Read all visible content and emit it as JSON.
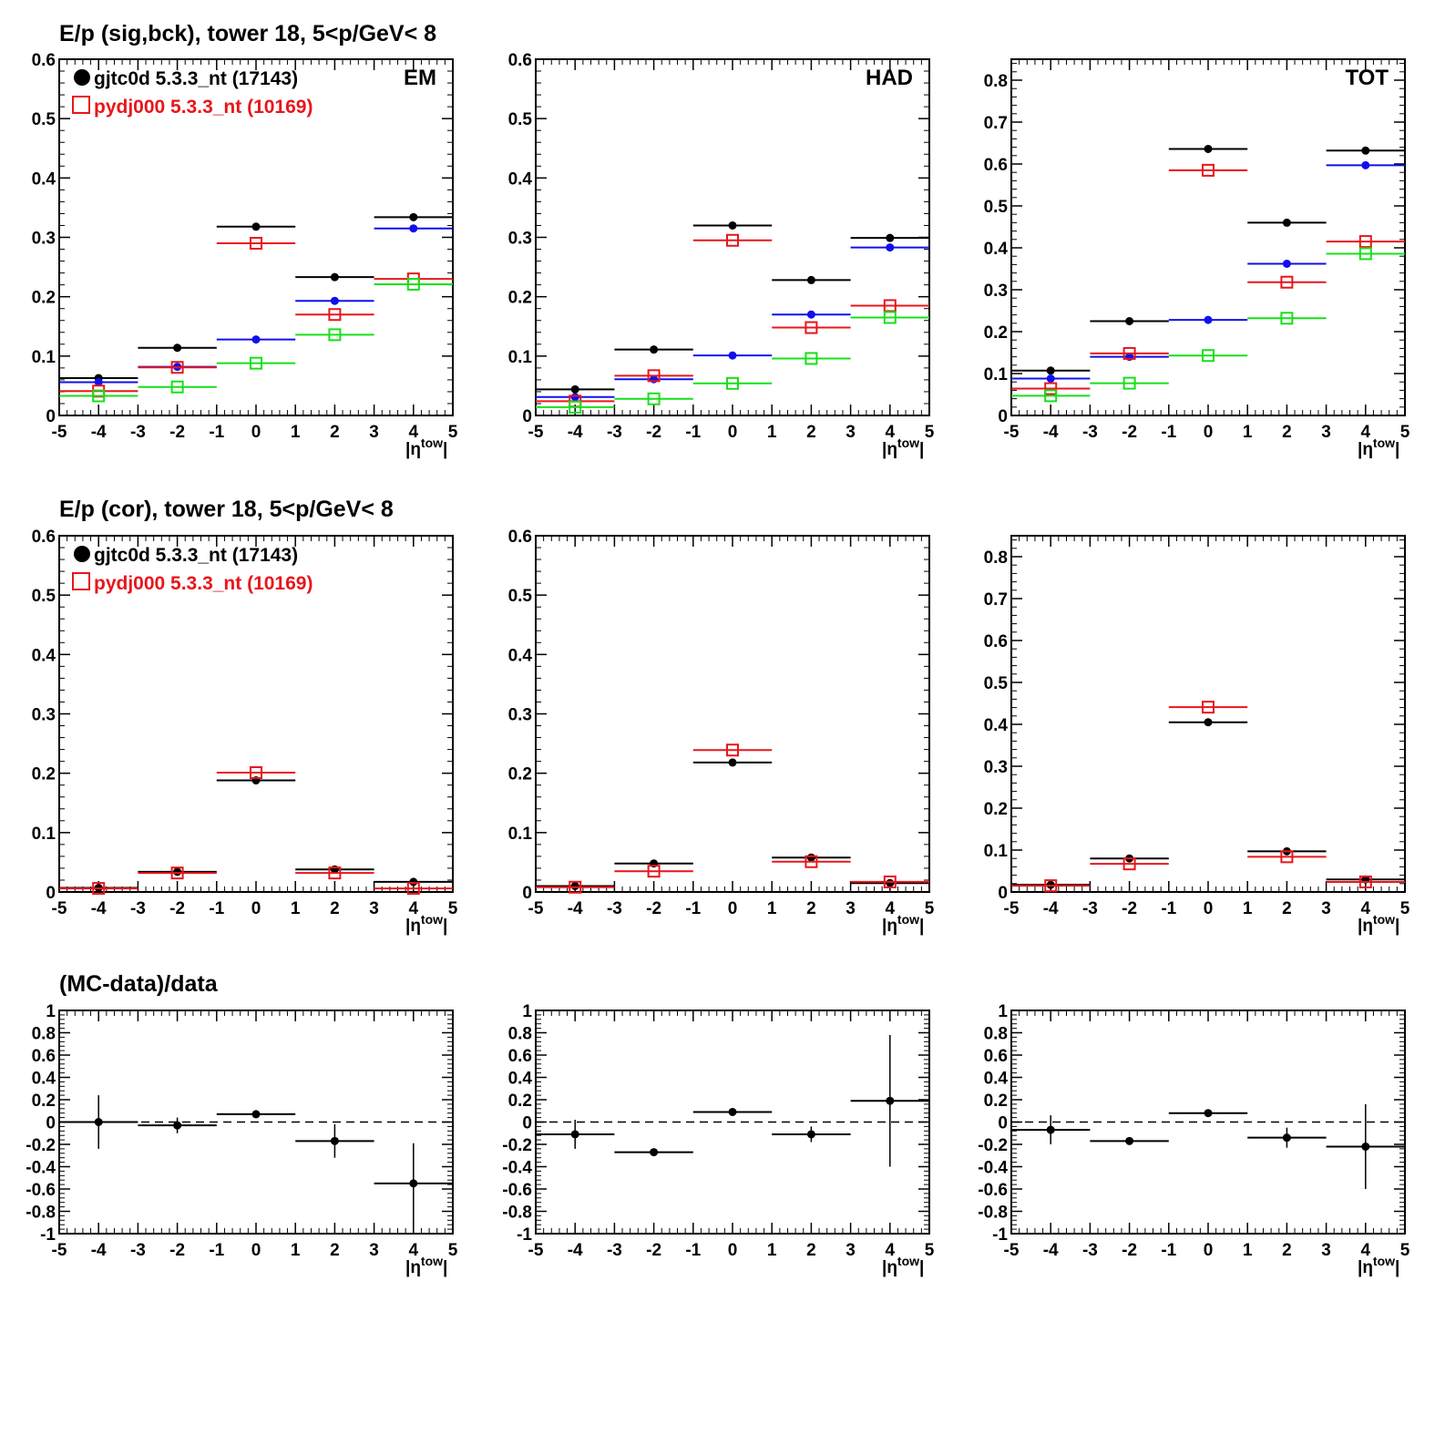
{
  "rows": [
    {
      "title": "E/p (sig,bck), tower 18,  5<p/GeV< 8"
    },
    {
      "title": "E/p (cor), tower 18,  5<p/GeV< 8"
    },
    {
      "title": "(MC-data)/data"
    }
  ],
  "legend": {
    "data_label": "gjtc0d 5.3.3_nt (17143)",
    "mc_label": "pydj000 5.3.3_nt (10169)",
    "placement": "top-left of first two left panels"
  },
  "xlabel": "|η^tow|",
  "colors": {
    "data": "#000000",
    "mc": "#e8161b",
    "data_bck": "#1010ee",
    "mc_bck": "#17e01a"
  },
  "chart_data": [
    {
      "type": "scatter",
      "row": 0,
      "col": 0,
      "corner_label": "EM",
      "xlabel": "|η^tow|",
      "xlim": [
        -5,
        5
      ],
      "ylim": [
        0,
        0.6
      ],
      "x": [
        -4,
        -2,
        0,
        2,
        4
      ],
      "xerr": 1,
      "series": [
        {
          "name": "gjtc0d 5.3.3_nt (17143)",
          "color": "black",
          "marker": "dot",
          "values": [
            0.063,
            0.114,
            0.318,
            0.233,
            0.334
          ]
        },
        {
          "color": "blue",
          "marker": "dot",
          "values": [
            0.056,
            0.082,
            0.128,
            0.193,
            0.315
          ]
        },
        {
          "name": "pydj000 5.3.3_nt (10169)",
          "color": "red",
          "marker": "open-square",
          "values": [
            0.041,
            0.081,
            0.29,
            0.17,
            0.23
          ]
        },
        {
          "color": "green",
          "marker": "open-square",
          "values": [
            0.033,
            0.048,
            0.088,
            0.136,
            0.221
          ]
        }
      ]
    },
    {
      "type": "scatter",
      "row": 0,
      "col": 1,
      "corner_label": "HAD",
      "xlabel": "|η^tow|",
      "xlim": [
        -5,
        5
      ],
      "ylim": [
        0,
        0.6
      ],
      "x": [
        -4,
        -2,
        0,
        2,
        4
      ],
      "xerr": 1,
      "series": [
        {
          "color": "black",
          "marker": "dot",
          "values": [
            0.044,
            0.111,
            0.32,
            0.228,
            0.299
          ]
        },
        {
          "color": "blue",
          "marker": "dot",
          "values": [
            0.031,
            0.061,
            0.101,
            0.17,
            0.283
          ]
        },
        {
          "color": "red",
          "marker": "open-square",
          "values": [
            0.024,
            0.067,
            0.295,
            0.148,
            0.185
          ]
        },
        {
          "color": "green",
          "marker": "open-square",
          "values": [
            0.014,
            0.028,
            0.054,
            0.096,
            0.165
          ]
        }
      ]
    },
    {
      "type": "scatter",
      "row": 0,
      "col": 2,
      "corner_label": "TOT",
      "xlabel": "|η^tow|",
      "xlim": [
        -5,
        5
      ],
      "ylim": [
        0,
        0.85
      ],
      "x": [
        -4,
        -2,
        0,
        2,
        4
      ],
      "xerr": 1,
      "series": [
        {
          "color": "black",
          "marker": "dot",
          "values": [
            0.107,
            0.225,
            0.636,
            0.46,
            0.632
          ]
        },
        {
          "color": "blue",
          "marker": "dot",
          "values": [
            0.088,
            0.14,
            0.228,
            0.362,
            0.597
          ]
        },
        {
          "color": "red",
          "marker": "open-square",
          "values": [
            0.064,
            0.148,
            0.585,
            0.318,
            0.415
          ]
        },
        {
          "color": "green",
          "marker": "open-square",
          "values": [
            0.047,
            0.077,
            0.143,
            0.232,
            0.386
          ]
        }
      ]
    },
    {
      "type": "scatter",
      "row": 1,
      "col": 0,
      "corner_label": "",
      "xlabel": "|η^tow|",
      "xlim": [
        -5,
        5
      ],
      "ylim": [
        0,
        0.6
      ],
      "x": [
        -4,
        -2,
        0,
        2,
        4
      ],
      "xerr": 1,
      "series": [
        {
          "name": "gjtc0d 5.3.3_nt (17143)",
          "color": "black",
          "marker": "dot",
          "values": [
            0.007,
            0.034,
            0.188,
            0.038,
            0.017
          ]
        },
        {
          "name": "pydj000 5.3.3_nt (10169)",
          "color": "red",
          "marker": "open-square",
          "values": [
            0.006,
            0.032,
            0.201,
            0.032,
            0.006
          ]
        }
      ]
    },
    {
      "type": "scatter",
      "row": 1,
      "col": 1,
      "corner_label": "",
      "xlabel": "|η^tow|",
      "xlim": [
        -5,
        5
      ],
      "ylim": [
        0,
        0.6
      ],
      "x": [
        -4,
        -2,
        0,
        2,
        4
      ],
      "xerr": 1,
      "series": [
        {
          "color": "black",
          "marker": "dot",
          "values": [
            0.01,
            0.048,
            0.218,
            0.058,
            0.015
          ]
        },
        {
          "color": "red",
          "marker": "open-square",
          "values": [
            0.008,
            0.035,
            0.239,
            0.051,
            0.017
          ]
        }
      ]
    },
    {
      "type": "scatter",
      "row": 1,
      "col": 2,
      "corner_label": "",
      "xlabel": "|η^tow|",
      "xlim": [
        -5,
        5
      ],
      "ylim": [
        0,
        0.85
      ],
      "x": [
        -4,
        -2,
        0,
        2,
        4
      ],
      "xerr": 1,
      "series": [
        {
          "color": "black",
          "marker": "dot",
          "values": [
            0.017,
            0.08,
            0.405,
            0.097,
            0.03
          ]
        },
        {
          "color": "red",
          "marker": "open-square",
          "values": [
            0.015,
            0.067,
            0.441,
            0.084,
            0.024
          ]
        }
      ]
    },
    {
      "type": "scatter",
      "row": 2,
      "col": 0,
      "corner_label": "",
      "xlabel": "|η^tow|",
      "xlim": [
        -5,
        5
      ],
      "ylim": [
        -1,
        1
      ],
      "reference_line": 0,
      "x": [
        -4,
        -2,
        0,
        2,
        4
      ],
      "xerr": 1,
      "series": [
        {
          "color": "black",
          "marker": "dot",
          "values": [
            0.0,
            -0.03,
            0.07,
            -0.17,
            -0.55
          ],
          "yerr": [
            0.24,
            0.07,
            0.02,
            0.15,
            0.36
          ]
        }
      ]
    },
    {
      "type": "scatter",
      "row": 2,
      "col": 1,
      "corner_label": "",
      "xlabel": "|η^tow|",
      "xlim": [
        -5,
        5
      ],
      "ylim": [
        -1,
        1
      ],
      "reference_line": 0,
      "x": [
        -4,
        -2,
        0,
        2,
        4
      ],
      "xerr": 1,
      "series": [
        {
          "color": "black",
          "marker": "dot",
          "values": [
            -0.11,
            -0.27,
            0.09,
            -0.11,
            0.19
          ],
          "yerr": [
            0.13,
            0.02,
            0.01,
            0.07,
            0.59
          ]
        }
      ]
    },
    {
      "type": "scatter",
      "row": 2,
      "col": 2,
      "corner_label": "",
      "xlabel": "|η^tow|",
      "xlim": [
        -5,
        5
      ],
      "ylim": [
        -1,
        1
      ],
      "reference_line": 0,
      "x": [
        -4,
        -2,
        0,
        2,
        4
      ],
      "xerr": 1,
      "series": [
        {
          "color": "black",
          "marker": "dot",
          "values": [
            -0.07,
            -0.17,
            0.08,
            -0.14,
            -0.22
          ],
          "yerr": [
            0.13,
            0.02,
            0.01,
            0.09,
            0.38
          ]
        }
      ]
    }
  ]
}
